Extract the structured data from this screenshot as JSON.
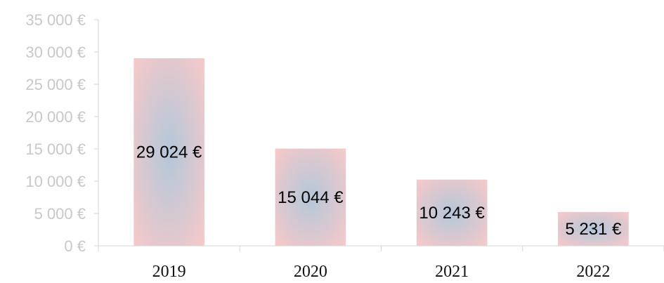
{
  "chart_data": {
    "type": "bar",
    "title": "",
    "xlabel": "",
    "ylabel": "",
    "categories": [
      "2019",
      "2020",
      "2021",
      "2022"
    ],
    "values": [
      29024,
      15044,
      10243,
      5231
    ],
    "data_labels": [
      "29 024 €",
      "15 044 €",
      "10 243 €",
      "5 231 €"
    ],
    "ylim": [
      0,
      35000
    ],
    "yticks": [
      0,
      5000,
      10000,
      15000,
      20000,
      25000,
      30000,
      35000
    ],
    "ytick_labels": [
      "0 €",
      "5 000 €",
      "10 000 €",
      "15 000 €",
      "20 000 €",
      "25 000 €",
      "30 000 €",
      "35 000 €"
    ],
    "grid": false,
    "legend": "none",
    "colors": {
      "bar_edge": "#f7c9c9",
      "bar_center": "#b3c7d9"
    }
  }
}
